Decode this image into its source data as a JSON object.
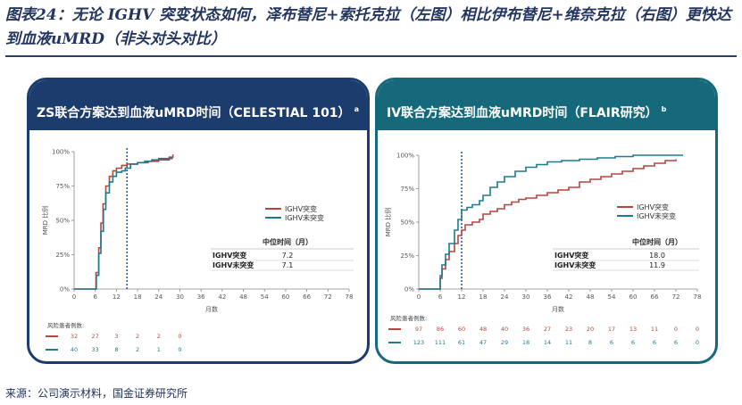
{
  "figure": {
    "title": "图表24：无论 IGHV 突变状态如何，泽布替尼+索托克拉（左图）相比伊布替尼+维奈克拉（右图）更快达到血液uMRD（非头对头对比）",
    "source": "来源：公司演示材料，国金证券研究所"
  },
  "colors": {
    "mutated": "#b8443f",
    "unmutated": "#1f7a8c",
    "median_line": "#2a56a8",
    "left_header": "#1d3c6e",
    "right_header": "#15697a"
  },
  "chart_data": [
    {
      "type": "line",
      "title": "ZS联合方案达到血液uMRD时间（CELESTIAL 101）",
      "superscript": "a",
      "ylabel": "MRD 比例",
      "xlabel": "月数",
      "y_ticks": [
        "0%",
        "25%",
        "50%",
        "75%",
        "100%"
      ],
      "x_ticks": [
        "0",
        "6",
        "12",
        "18",
        "24",
        "30",
        "36",
        "42",
        "48",
        "54",
        "60",
        "66",
        "72",
        "78"
      ],
      "xlim": [
        0,
        78
      ],
      "ylim": [
        0,
        100
      ],
      "median_line_x": 15,
      "series": [
        {
          "name": "IGHV突变",
          "color": "#b8443f",
          "x": [
            0,
            5.8,
            6.2,
            7,
            7.6,
            8.2,
            9,
            10,
            11,
            12,
            13.5,
            15,
            18,
            21,
            24,
            27,
            28
          ],
          "y": [
            0,
            0,
            12,
            30,
            48,
            62,
            75,
            82,
            86,
            88,
            90,
            91,
            92,
            93,
            94,
            96,
            98
          ]
        },
        {
          "name": "IGHV未突变",
          "color": "#1f7a8c",
          "x": [
            0,
            5.8,
            6.3,
            7,
            7.6,
            8.3,
            9,
            10,
            11,
            12,
            13.5,
            14.5,
            16,
            18,
            20,
            22,
            24,
            27,
            28
          ],
          "y": [
            0,
            0,
            10,
            26,
            42,
            58,
            70,
            78,
            82,
            85,
            86,
            88,
            91,
            92,
            93,
            94,
            95,
            95,
            95
          ]
        }
      ],
      "median_table": {
        "header": "中位时间（月）",
        "rows": [
          {
            "label": "IGHV突变",
            "value": "7.2"
          },
          {
            "label": "IGHV未突变",
            "value": "7.1"
          }
        ]
      },
      "risk_table": {
        "title": "风险患者例数:",
        "rows": [
          {
            "name": "IGHV突变",
            "values": [
              "32",
              "27",
              "3",
              "2",
              "2",
              "0"
            ]
          },
          {
            "name": "IGHV未突变",
            "values": [
              "40",
              "33",
              "8",
              "2",
              "1",
              "0"
            ]
          }
        ]
      }
    },
    {
      "type": "line",
      "title": "IV联合方案达到血液uMRD时间（FLAIR研究）",
      "superscript": "b",
      "ylabel": "MRD 比例",
      "xlabel": "月数",
      "y_ticks": [
        "0%",
        "25%",
        "50%",
        "75%",
        "100%"
      ],
      "x_ticks": [
        "0",
        "6",
        "12",
        "18",
        "24",
        "30",
        "36",
        "42",
        "48",
        "54",
        "60",
        "66",
        "72",
        "78"
      ],
      "xlim": [
        0,
        78
      ],
      "ylim": [
        0,
        100
      ],
      "median_line_x": 12,
      "series": [
        {
          "name": "IGHV突变",
          "color": "#b8443f",
          "x": [
            0,
            5.5,
            6,
            6.5,
            7.5,
            8.5,
            10,
            11,
            12,
            13,
            15,
            17,
            18,
            20,
            22,
            24,
            26,
            28,
            30,
            33,
            36,
            39,
            42,
            45,
            48,
            51,
            54,
            57,
            60,
            63,
            66,
            69,
            72
          ],
          "y": [
            0,
            0,
            8,
            15,
            22,
            28,
            34,
            40,
            44,
            48,
            50,
            52,
            56,
            58,
            60,
            63,
            65,
            67,
            68,
            70,
            72,
            74,
            76,
            80,
            82,
            84,
            86,
            88,
            90,
            92,
            94,
            96,
            97
          ]
        },
        {
          "name": "IGHV未突变",
          "color": "#1f7a8c",
          "x": [
            0,
            5.5,
            6,
            6.5,
            7.5,
            8.5,
            10,
            11,
            12,
            13.5,
            15,
            17,
            18,
            20,
            22,
            24,
            27,
            30,
            33,
            36,
            40,
            45,
            50,
            55,
            60,
            66,
            72,
            74
          ],
          "y": [
            0,
            0,
            10,
            18,
            26,
            34,
            44,
            52,
            59,
            61,
            63,
            66,
            70,
            76,
            80,
            84,
            88,
            91,
            93,
            95,
            96,
            97,
            98,
            99,
            100,
            100,
            100,
            100
          ]
        }
      ],
      "median_table": {
        "header": "中位时间（月）",
        "rows": [
          {
            "label": "IGHV突变",
            "value": "18.0"
          },
          {
            "label": "IGHV未突变",
            "value": "11.9"
          }
        ]
      },
      "risk_table": {
        "title": "风险患者例数:",
        "rows": [
          {
            "name": "IGHV突变",
            "values": [
              "97",
              "86",
              "60",
              "48",
              "40",
              "36",
              "27",
              "23",
              "20",
              "17",
              "13",
              "11",
              "0",
              "0"
            ]
          },
          {
            "name": "IGHV未突变",
            "values": [
              "123",
              "111",
              "61",
              "47",
              "29",
              "18",
              "14",
              "11",
              "8",
              "6",
              "6",
              "6",
              "6",
              "0"
            ]
          }
        ]
      }
    }
  ]
}
